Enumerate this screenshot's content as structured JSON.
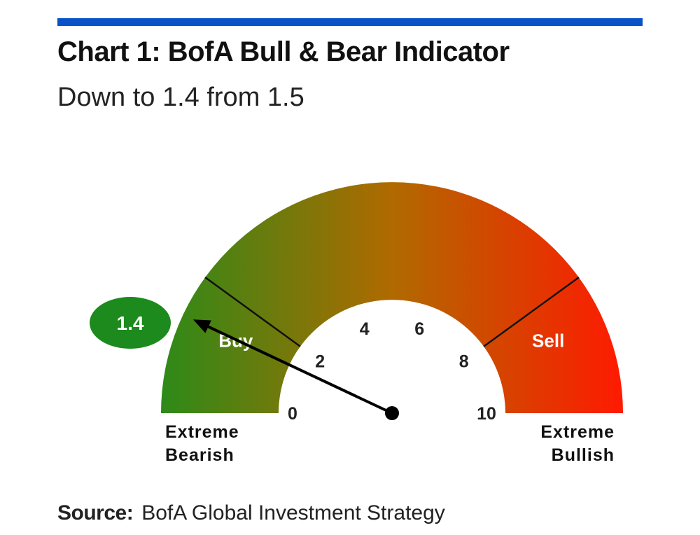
{
  "header": {
    "title": "Chart 1: BofA Bull & Bear Indicator",
    "subtitle": "Down to 1.4 from 1.5"
  },
  "footer": {
    "source_label": "Source:",
    "source_text": "BofA Global Investment Strategy"
  },
  "colors": {
    "rule": "#0a52c8",
    "gauge_start": "#2d8a18",
    "gauge_mid": "#b06a00",
    "gauge_end": "#ff1a00",
    "value_bubble": "#1c8a1c"
  },
  "chart_data": {
    "type": "gauge",
    "range": [
      0,
      10
    ],
    "value": 1.4,
    "value_label": "1.4",
    "ticks": [
      {
        "value": 0,
        "label": "0"
      },
      {
        "value": 2,
        "label": "2"
      },
      {
        "value": 4,
        "label": "4"
      },
      {
        "value": 6,
        "label": "6"
      },
      {
        "value": 8,
        "label": "8"
      },
      {
        "value": 10,
        "label": "10"
      }
    ],
    "zones": [
      {
        "label": "Buy",
        "from": 0,
        "to": 2
      },
      {
        "label": "Sell",
        "from": 8,
        "to": 10
      }
    ],
    "end_labels": {
      "left": [
        "Extreme",
        "Bearish"
      ],
      "right": [
        "Extreme",
        "Bullish"
      ]
    }
  }
}
